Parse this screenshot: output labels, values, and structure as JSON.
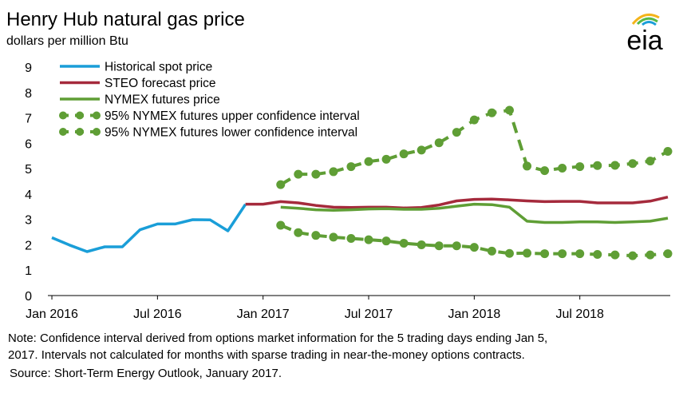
{
  "logo": "eia",
  "chart_data": {
    "type": "line",
    "title": "Henry Hub natural gas price",
    "subtitle": "dollars per million Btu",
    "categories": [
      "Jan 2016",
      null,
      null,
      null,
      null,
      null,
      "Jul 2016",
      null,
      null,
      null,
      null,
      null,
      "Jan 2017",
      null,
      null,
      null,
      null,
      null,
      "Jul 2017",
      null,
      null,
      null,
      null,
      null,
      "Jan 2018",
      null,
      null,
      null,
      null,
      null,
      "Jul 2018",
      null,
      null,
      null,
      null,
      null
    ],
    "ylim": [
      0,
      9
    ],
    "yticks": [
      0,
      1,
      2,
      3,
      4,
      5,
      6,
      7,
      8,
      9
    ],
    "grid": false,
    "legend": "top-left",
    "series": [
      {
        "name": "Historical spot price",
        "color": "#1a9ed8",
        "line_style": "solid",
        "values": [
          2.28,
          1.99,
          1.73,
          1.92,
          1.92,
          2.59,
          2.82,
          2.82,
          2.99,
          2.98,
          2.55,
          3.59,
          null,
          null,
          null,
          null,
          null,
          null,
          null,
          null,
          null,
          null,
          null,
          null,
          null,
          null,
          null,
          null,
          null,
          null,
          null,
          null,
          null,
          null,
          null,
          null
        ]
      },
      {
        "name": "STEO forecast price",
        "color": "#a52a3c",
        "line_style": "solid",
        "values": [
          null,
          null,
          null,
          null,
          null,
          null,
          null,
          null,
          null,
          null,
          null,
          3.6,
          3.6,
          3.7,
          3.65,
          3.55,
          3.48,
          3.47,
          3.48,
          3.48,
          3.45,
          3.47,
          3.57,
          3.73,
          3.79,
          3.8,
          3.77,
          3.73,
          3.7,
          3.71,
          3.71,
          3.65,
          3.65,
          3.65,
          3.72,
          3.88
        ]
      },
      {
        "name": "NYMEX futures price",
        "color": "#5f9e35",
        "line_style": "solid",
        "values": [
          null,
          null,
          null,
          null,
          null,
          null,
          null,
          null,
          null,
          null,
          null,
          null,
          null,
          3.48,
          3.44,
          3.38,
          3.36,
          3.38,
          3.41,
          3.42,
          3.4,
          3.4,
          3.44,
          3.52,
          3.6,
          3.58,
          3.48,
          2.93,
          2.88,
          2.88,
          2.9,
          2.9,
          2.88,
          2.9,
          2.93,
          3.05
        ]
      },
      {
        "name": "95% NYMEX futures upper confidence interval",
        "color": "#5f9e35",
        "line_style": "dashed-dots",
        "values": [
          null,
          null,
          null,
          null,
          null,
          null,
          null,
          null,
          null,
          null,
          null,
          null,
          null,
          4.37,
          4.78,
          4.78,
          4.88,
          5.08,
          5.28,
          5.37,
          5.58,
          5.73,
          6.02,
          6.43,
          6.92,
          7.2,
          7.3,
          5.1,
          4.92,
          5.02,
          5.08,
          5.12,
          5.13,
          5.2,
          5.3,
          5.68
        ]
      },
      {
        "name": "95% NYMEX futures lower confidence interval",
        "color": "#5f9e35",
        "line_style": "dashed-dots",
        "values": [
          null,
          null,
          null,
          null,
          null,
          null,
          null,
          null,
          null,
          null,
          null,
          null,
          null,
          2.77,
          2.48,
          2.37,
          2.3,
          2.25,
          2.2,
          2.15,
          2.06,
          2.0,
          1.96,
          1.96,
          1.9,
          1.75,
          1.66,
          1.67,
          1.65,
          1.65,
          1.65,
          1.62,
          1.6,
          1.57,
          1.6,
          1.65
        ]
      }
    ],
    "notes": [
      "Note: Confidence interval derived from options market information for the 5 trading days ending Jan 5,",
      "2017. Intervals not calculated for months with sparse trading in near-the-money options contracts."
    ],
    "source": "Source: Short-Term Energy Outlook, January 2017."
  }
}
